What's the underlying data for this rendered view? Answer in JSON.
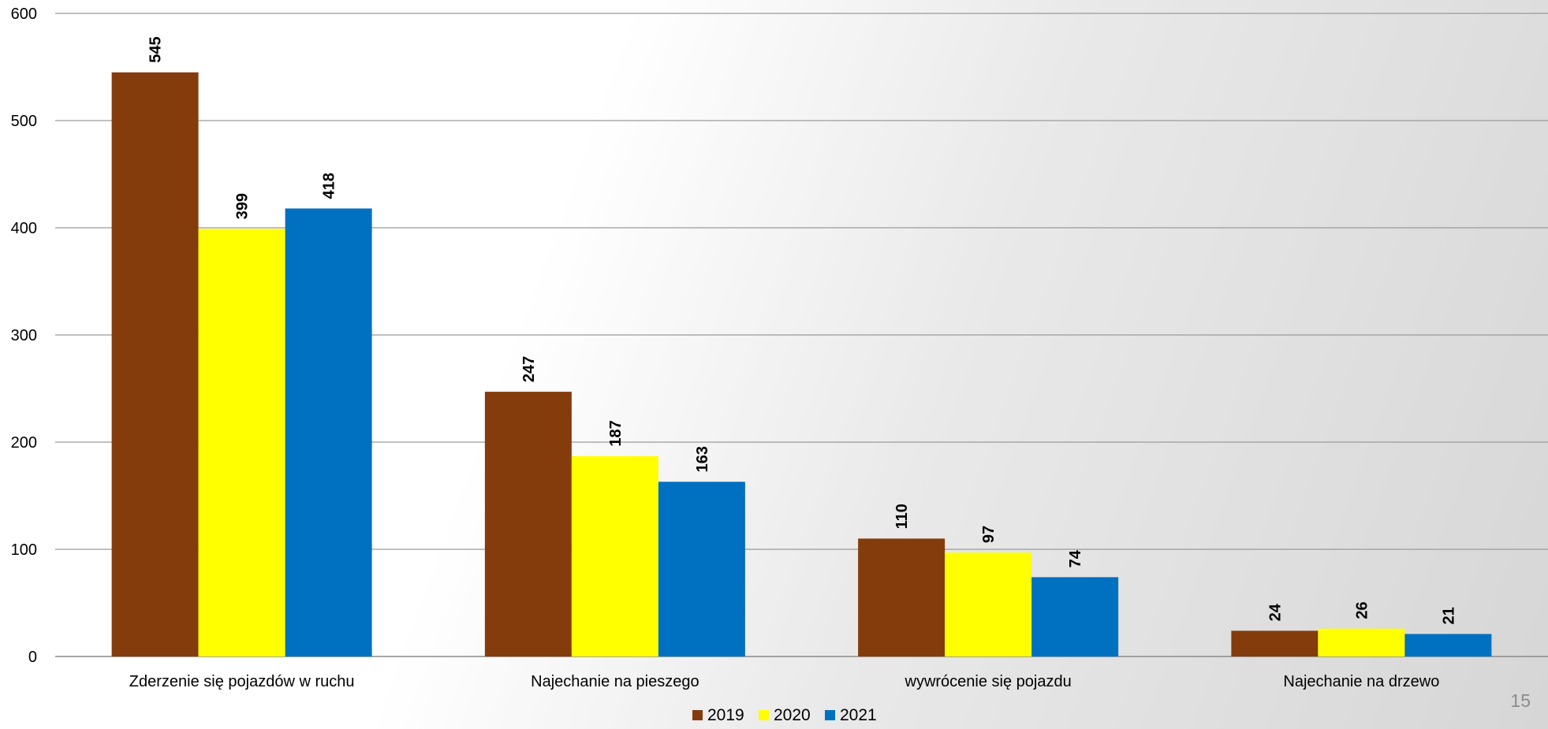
{
  "page_number": "15",
  "chart_data": {
    "type": "bar",
    "title": "",
    "xlabel": "",
    "ylabel": "",
    "categories": [
      "Zderzenie się pojazdów w ruchu",
      "Najechanie na pieszego",
      "wywrócenie się pojazdu",
      "Najechanie na drzewo"
    ],
    "series": [
      {
        "name": "2019",
        "color": "#843C0C",
        "values": [
          545,
          247,
          110,
          24
        ]
      },
      {
        "name": "2020",
        "color": "#FFFF00",
        "values": [
          399,
          187,
          97,
          26
        ]
      },
      {
        "name": "2021",
        "color": "#0070C0",
        "values": [
          418,
          163,
          74,
          21
        ]
      }
    ],
    "ylim": [
      0,
      600
    ],
    "yticks": [
      0,
      100,
      200,
      300,
      400,
      500,
      600
    ],
    "grid": true,
    "data_labels": true,
    "legend_position": "bottom"
  }
}
